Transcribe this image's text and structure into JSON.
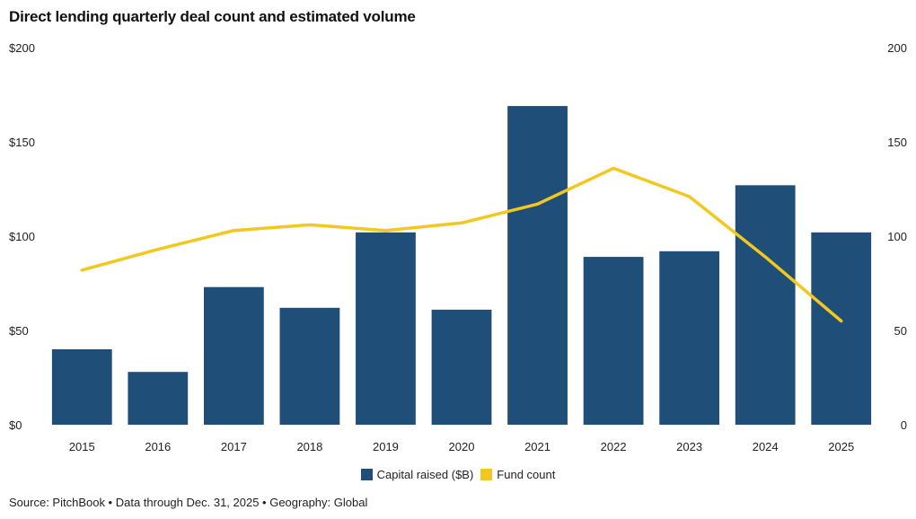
{
  "chart_data": {
    "type": "bar",
    "title": "Direct lending quarterly deal count and estimated volume",
    "categories": [
      "2015",
      "2016",
      "2017",
      "2018",
      "2019",
      "2020",
      "2021",
      "2022",
      "2023",
      "2024",
      "2025"
    ],
    "series": [
      {
        "name": "Capital raised ($B)",
        "type": "bar",
        "axis": "left",
        "color": "#1f4e79",
        "values": [
          40,
          28,
          73,
          62,
          102,
          61,
          169,
          89,
          92,
          127,
          102
        ]
      },
      {
        "name": "Fund count",
        "type": "line",
        "axis": "right",
        "color": "#f2c81e",
        "values": [
          82,
          93,
          103,
          106,
          103,
          107,
          117,
          136,
          121,
          89,
          55
        ]
      }
    ],
    "y_left": {
      "min": 0,
      "max": 200,
      "ticks": [
        "$0",
        "$50",
        "$100",
        "$150",
        "$200"
      ]
    },
    "y_right": {
      "min": 0,
      "max": 200,
      "ticks": [
        "0",
        "50",
        "100",
        "150",
        "200"
      ]
    },
    "grid": false,
    "legend_position": "bottom-center"
  },
  "legend": {
    "bar_label": "Capital raised ($B)",
    "line_label": "Fund count"
  },
  "source_text": "Source: PitchBook • Data through Dec. 31, 2025 • Geography: Global"
}
